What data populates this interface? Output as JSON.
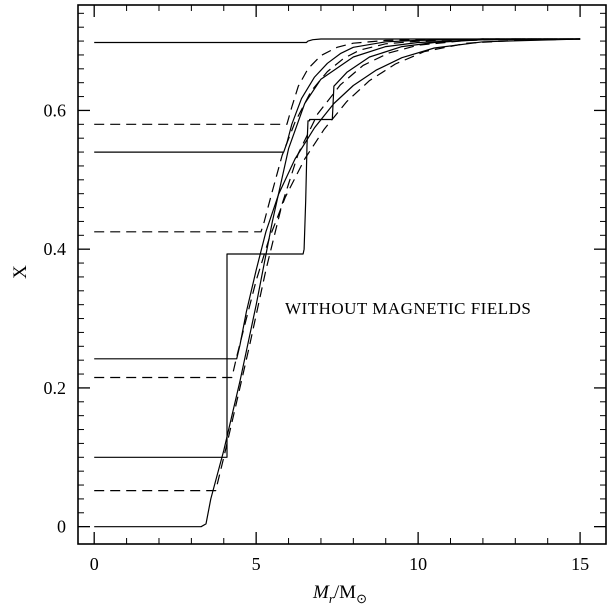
{
  "chart_data": {
    "type": "line",
    "xlabel": "M_r/M_⊙",
    "ylabel": "X",
    "annotation": "WITHOUT MAGNETIC FIELDS",
    "xlim": [
      -0.5,
      15.8
    ],
    "ylim": [
      -0.025,
      0.752
    ],
    "x_ticks": [
      0,
      5,
      10,
      15
    ],
    "x_tick_labels": [
      "0",
      "5",
      "10",
      "15"
    ],
    "y_ticks": [
      0,
      0.2,
      0.4,
      0.6
    ],
    "y_tick_labels": [
      "0",
      "0.2",
      "0.4",
      "0.6"
    ],
    "grid": false,
    "series": [
      {
        "style": "solid",
        "x": [
          0,
          3.3,
          3.45,
          3.6,
          4.0,
          4.5,
          5.0,
          5.5,
          6.0,
          6.5,
          7.0,
          8.0,
          9.0,
          10.0,
          12.0,
          15.0
        ],
        "y": [
          0.0,
          0.0,
          0.004,
          0.04,
          0.11,
          0.21,
          0.32,
          0.44,
          0.545,
          0.61,
          0.645,
          0.677,
          0.692,
          0.698,
          0.702,
          0.703
        ]
      },
      {
        "style": "solid",
        "x": [
          0,
          6.55,
          6.6,
          6.75,
          7.0,
          7.5,
          8.0,
          9.0,
          10.0,
          12.0,
          15.0
        ],
        "y": [
          0.698,
          0.698,
          0.7,
          0.702,
          0.703,
          0.703,
          0.703,
          0.703,
          0.703,
          0.703,
          0.703
        ]
      },
      {
        "style": "dashed",
        "x": [
          0,
          5.95,
          6.1,
          6.3,
          6.6,
          7.0,
          7.5,
          8.0,
          9.0,
          10.0,
          12.0,
          15.0
        ],
        "y": [
          0.58,
          0.58,
          0.605,
          0.635,
          0.66,
          0.679,
          0.691,
          0.697,
          0.701,
          0.702,
          0.703,
          0.703
        ]
      },
      {
        "style": "solid",
        "x": [
          0,
          5.85,
          5.95,
          6.1,
          6.4,
          6.8,
          7.2,
          7.6,
          8.0,
          9.0,
          10.0,
          12.0,
          15.0
        ],
        "y": [
          0.54,
          0.54,
          0.553,
          0.58,
          0.617,
          0.648,
          0.668,
          0.682,
          0.691,
          0.699,
          0.701,
          0.703,
          0.703
        ]
      },
      {
        "style": "dashed",
        "x": [
          0,
          5.15,
          5.25,
          5.45,
          5.8,
          6.2,
          6.7,
          7.2,
          7.7,
          8.2,
          9.0,
          10.0,
          12.0,
          15.0
        ],
        "y": [
          0.425,
          0.425,
          0.44,
          0.475,
          0.535,
          0.583,
          0.628,
          0.656,
          0.675,
          0.687,
          0.696,
          0.7,
          0.703,
          0.703
        ]
      },
      {
        "style": "solid",
        "x": [
          0,
          4.1,
          4.1,
          6.45,
          6.48,
          6.53,
          6.57,
          6.6,
          6.65,
          6.65,
          7.35,
          7.4,
          7.8,
          8.5,
          9.5,
          10.5,
          12.0,
          15.0
        ],
        "y": [
          0.1,
          0.1,
          0.393,
          0.393,
          0.4,
          0.47,
          0.55,
          0.585,
          0.585,
          0.587,
          0.587,
          0.635,
          0.655,
          0.677,
          0.692,
          0.698,
          0.702,
          0.703
        ]
      },
      {
        "style": "solid",
        "x": [
          0,
          4.4,
          4.5,
          4.7,
          5.0,
          5.3,
          5.7,
          6.2,
          6.8,
          7.4,
          8.0,
          8.7,
          9.5,
          10.5,
          12.0,
          15.0
        ],
        "y": [
          0.242,
          0.242,
          0.262,
          0.31,
          0.37,
          0.425,
          0.48,
          0.53,
          0.575,
          0.61,
          0.636,
          0.658,
          0.676,
          0.69,
          0.699,
          0.703
        ]
      },
      {
        "style": "dashed",
        "x": [
          0,
          4.25,
          4.4,
          4.7,
          5.0,
          5.4,
          5.9,
          6.5,
          7.1,
          7.8,
          8.5,
          9.3,
          10.2,
          11.5,
          13.0,
          15.0
        ],
        "y": [
          0.215,
          0.215,
          0.245,
          0.3,
          0.355,
          0.415,
          0.475,
          0.53,
          0.573,
          0.613,
          0.643,
          0.667,
          0.685,
          0.697,
          0.701,
          0.703
        ]
      },
      {
        "style": "dashed",
        "x": [
          0,
          3.75,
          4.0,
          4.4,
          4.8,
          5.3,
          5.8,
          6.3,
          6.9,
          7.6,
          8.3,
          9.1,
          10.0,
          11.5,
          13.0,
          15.0
        ],
        "y": [
          0.052,
          0.052,
          0.1,
          0.18,
          0.262,
          0.37,
          0.465,
          0.538,
          0.595,
          0.637,
          0.665,
          0.683,
          0.694,
          0.701,
          0.703,
          0.703
        ]
      }
    ]
  }
}
